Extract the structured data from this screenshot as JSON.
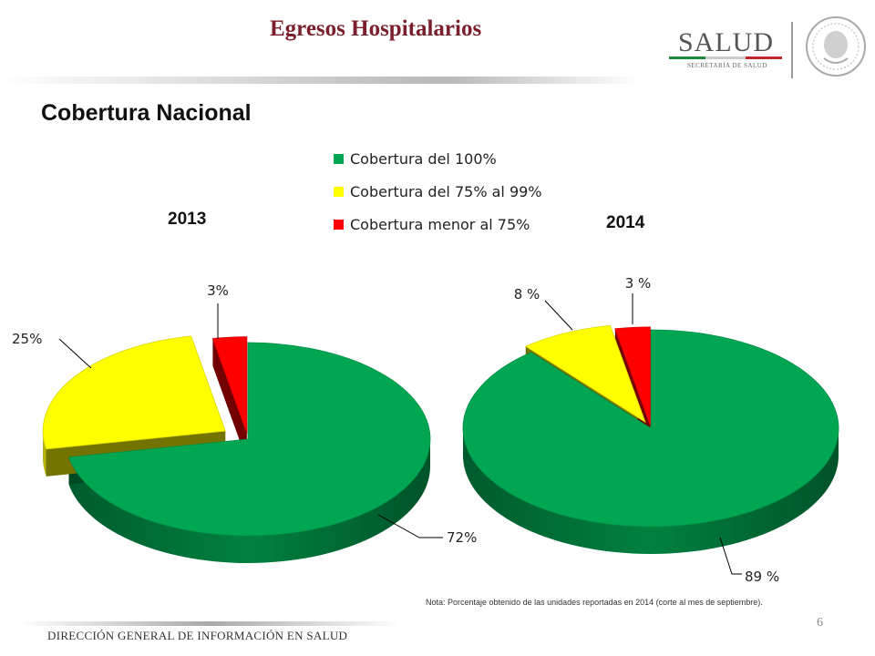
{
  "header": {
    "title": "Egresos Hospitalarios",
    "logo_text": "SALUD",
    "logo_subtext": "SECRETARÍA DE SALUD"
  },
  "section_title": "Cobertura Nacional",
  "note": "Nota: Porcentaje obtenido de las unidades reportadas en 2014 (corte al mes de septiembre).",
  "footer": {
    "text": "DIRECCIÓN GENERAL DE INFORMACIÓN EN SALUD",
    "page_number": "6"
  },
  "legend": [
    {
      "label": "Cobertura del 100%",
      "color": "#00a651"
    },
    {
      "label": "Cobertura del 75% al 99%",
      "color": "#ffff00"
    },
    {
      "label": "Cobertura menor al 75%",
      "color": "#ff0000"
    }
  ],
  "chart_data": [
    {
      "type": "pie",
      "title": "2013",
      "slices": [
        {
          "label": "Cobertura del 100%",
          "value": 72,
          "display": "72%",
          "color": "#00a651"
        },
        {
          "label": "Cobertura del 75% al 99%",
          "value": 25,
          "display": "25%",
          "color": "#ffff00"
        },
        {
          "label": "Cobertura menor al 75%",
          "value": 3,
          "display": "3%",
          "color": "#ff0000"
        }
      ]
    },
    {
      "type": "pie",
      "title": "2014",
      "slices": [
        {
          "label": "Cobertura del 100%",
          "value": 89,
          "display": "89 %",
          "color": "#00a651"
        },
        {
          "label": "Cobertura del 75% al 99%",
          "value": 8,
          "display": "8 %",
          "color": "#ffff00"
        },
        {
          "label": "Cobertura menor al 75%",
          "value": 3,
          "display": "3 %",
          "color": "#ff0000"
        }
      ]
    }
  ]
}
